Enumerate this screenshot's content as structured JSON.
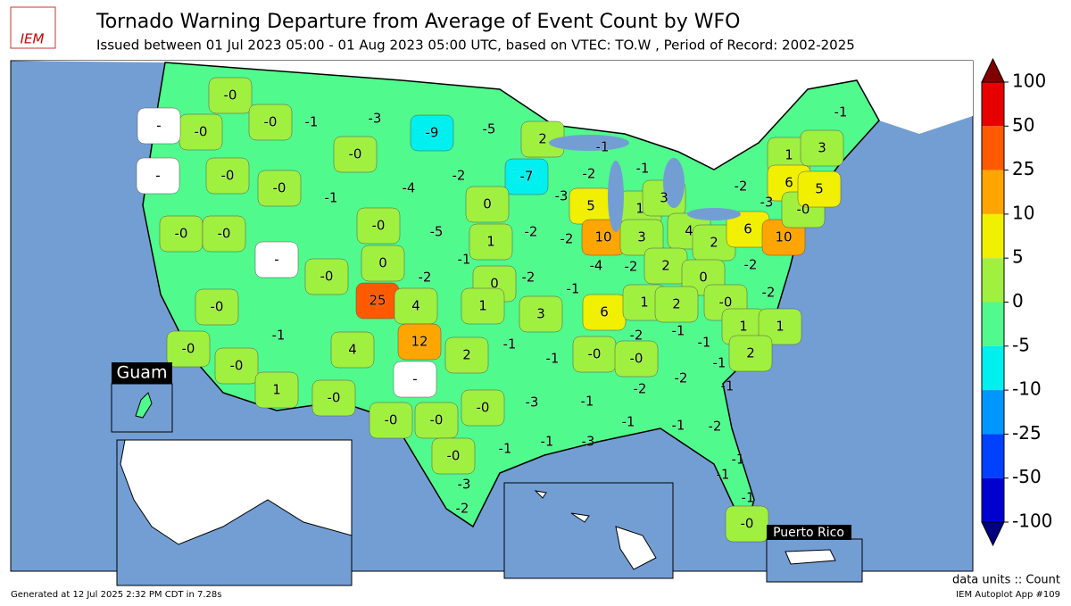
{
  "header": {
    "logo": "IEM",
    "title": "Tornado Warning Departure from Average of Event Count by WFO",
    "subtitle": "Issued between 01 Jul 2023 05:00 - 01 Aug 2023 05:00 UTC, based on VTEC: TO.W  , Period of Record: 2002-2025"
  },
  "colorbar": {
    "ticks": [
      100,
      50,
      25,
      10,
      5,
      0,
      -5,
      -10,
      -25,
      -50,
      -100
    ],
    "colors": [
      "#e60000",
      "#ff5a00",
      "#ffa500",
      "#f0f000",
      "#a0f040",
      "#50fa8c",
      "#00f0f0",
      "#0096ff",
      "#0040ff",
      "#0000d0"
    ],
    "over_color": "#800000",
    "under_color": "#000080"
  },
  "map": {
    "insets": [
      "Guam",
      "Puerto Rico"
    ],
    "labels": [
      "-0",
      "-0",
      "-0",
      "-1",
      "-3",
      "-9",
      "-5",
      "-0",
      "-0",
      "-0",
      "-1",
      "-4",
      "-2",
      "2",
      "-1",
      "-7",
      "-2",
      "-1",
      "-3",
      "0",
      "-0",
      "-0",
      "-0",
      "-5",
      "1",
      "-2",
      "-2",
      "5",
      "1",
      "3",
      "10",
      "3",
      "4",
      "2",
      "6",
      "10",
      "-2",
      "-3",
      "1",
      "6",
      "-0",
      "3",
      "5",
      "-1",
      "0",
      "-0",
      "-2",
      "-1",
      "0",
      "-2",
      "-4",
      "-2",
      "2",
      "0",
      "-2",
      "-2",
      "-0",
      "-0",
      "25",
      "4",
      "1",
      "3",
      "-1",
      "6",
      "1",
      "2",
      "-1",
      "-0",
      "-0",
      "4",
      "12",
      "2",
      "-1",
      "-1",
      "-0",
      "-2",
      "-0",
      "-1",
      "-1",
      "1",
      "1",
      "2",
      "-1",
      "-2",
      "-2",
      "-1",
      "1",
      "-0",
      "-0",
      "-0",
      "-0",
      "-3",
      "-1",
      "-1",
      "-1",
      "-2",
      "-1",
      "-1",
      "-3",
      "-0",
      "-1",
      "-1",
      "-3",
      "-1",
      "-2",
      "-0",
      "-",
      "-",
      "-",
      "-",
      "-",
      "-",
      "-"
    ]
  },
  "footer": {
    "generated": "Generated at 12 Jul 2025 2:32 PM CDT in 7.28s",
    "units": "data units :: Count",
    "app": "IEM Autoplot App #109"
  }
}
